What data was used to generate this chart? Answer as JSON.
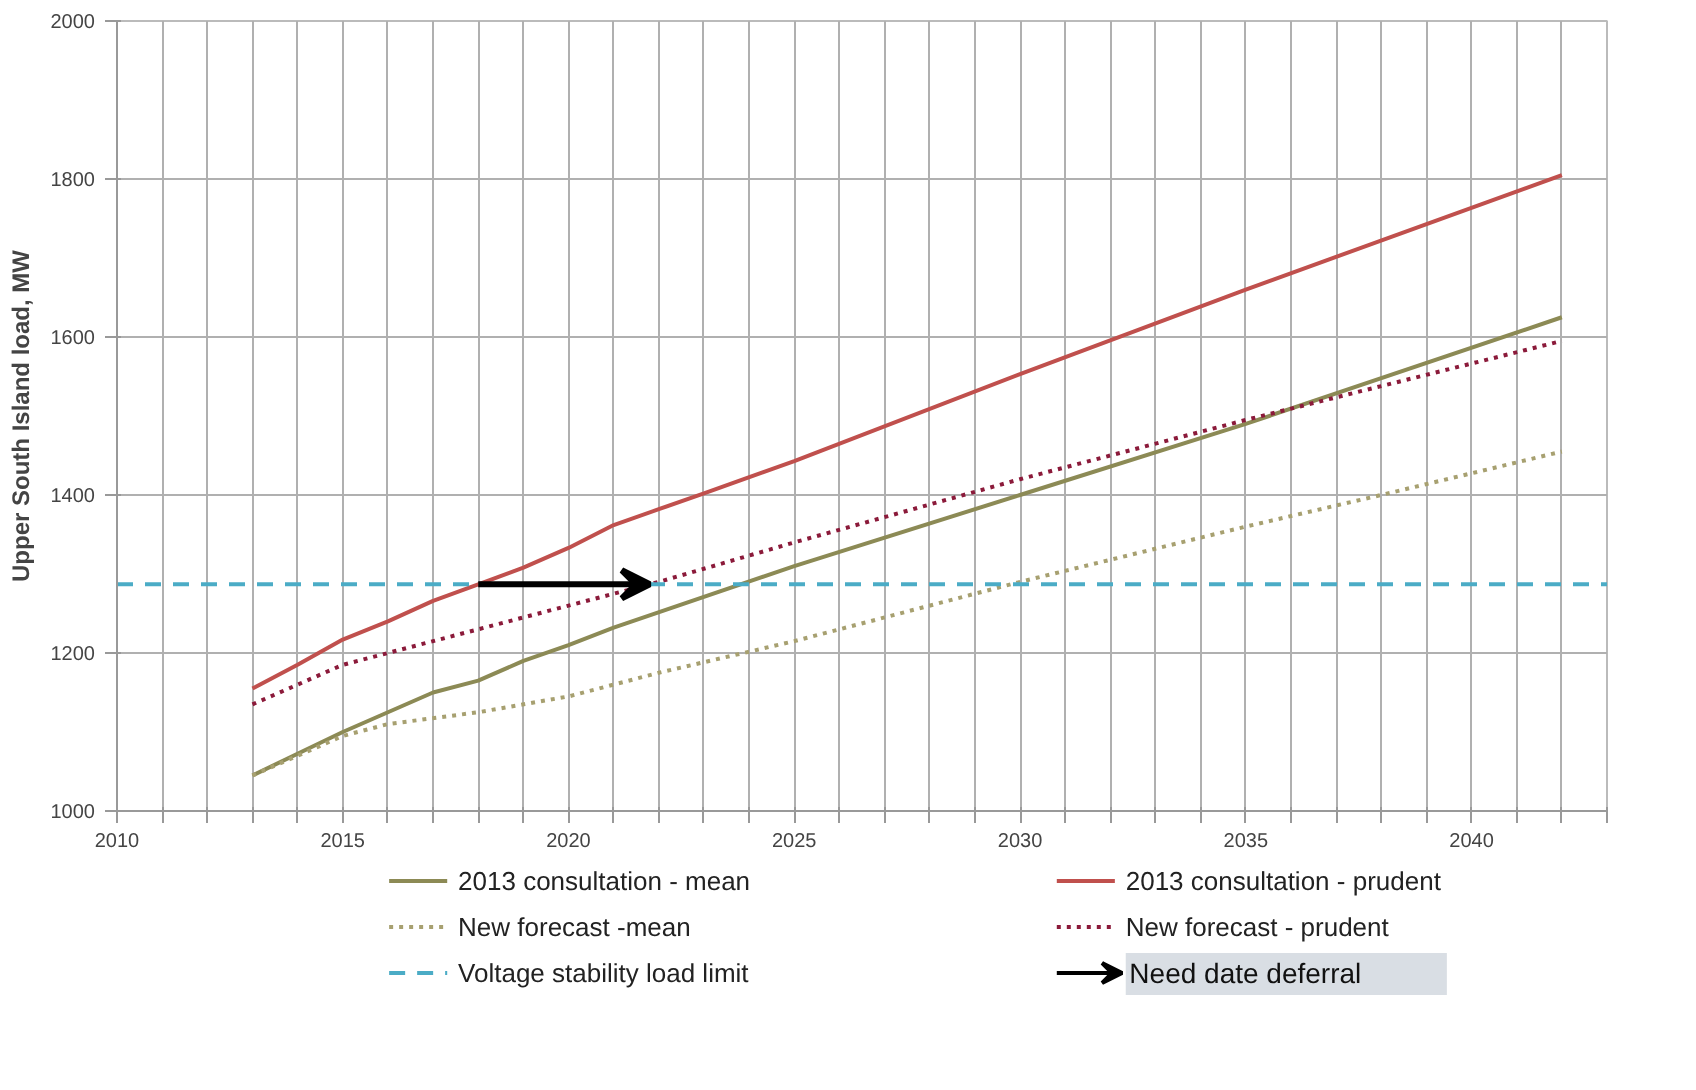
{
  "chart_data": {
    "type": "line",
    "ylabel": "Upper South Island load, MW",
    "xlim": [
      2010,
      2043
    ],
    "ylim": [
      1000,
      2000
    ],
    "xticks": [
      2010,
      {
        "value": 2011,
        "label": null
      },
      {
        "value": 2012,
        "label": null
      },
      {
        "value": 2013,
        "label": null
      },
      {
        "value": 2014,
        "label": null
      },
      2015,
      {
        "value": 2016,
        "label": null
      },
      {
        "value": 2017,
        "label": null
      },
      {
        "value": 2018,
        "label": null
      },
      {
        "value": 2019,
        "label": null
      },
      2020,
      {
        "value": 2021,
        "label": null
      },
      {
        "value": 2022,
        "label": null
      },
      {
        "value": 2023,
        "label": null
      },
      {
        "value": 2024,
        "label": null
      },
      2025,
      {
        "value": 2026,
        "label": null
      },
      {
        "value": 2027,
        "label": null
      },
      {
        "value": 2028,
        "label": null
      },
      {
        "value": 2029,
        "label": null
      },
      2030,
      {
        "value": 2031,
        "label": null
      },
      {
        "value": 2032,
        "label": null
      },
      {
        "value": 2033,
        "label": null
      },
      {
        "value": 2034,
        "label": null
      },
      2035,
      {
        "value": 2036,
        "label": null
      },
      {
        "value": 2037,
        "label": null
      },
      {
        "value": 2038,
        "label": null
      },
      {
        "value": 2039,
        "label": null
      },
      2040,
      {
        "value": 2041,
        "label": null
      },
      {
        "value": 2042,
        "label": null
      },
      {
        "value": 2043,
        "label": null
      }
    ],
    "yticks": [
      1000,
      1200,
      1400,
      1600,
      1800,
      2000
    ],
    "grid": true,
    "legend": "bottom",
    "series": [
      {
        "name": "2013 consultation - mean",
        "color": "#8c8a55",
        "line_style": "solid",
        "x": [
          2013,
          2015,
          2016,
          2017,
          2018,
          2019,
          2020,
          2021,
          2025,
          2030,
          2035,
          2042
        ],
        "values": [
          1045,
          1100,
          1125,
          1150,
          1165,
          1190,
          1210,
          1232,
          1310,
          1400,
          1490,
          1625
        ]
      },
      {
        "name": "2013 consultation - prudent",
        "color": "#c0504d",
        "line_style": "solid",
        "x": [
          2013,
          2014,
          2015,
          2016,
          2017,
          2018,
          2019,
          2020,
          2021,
          2022,
          2023,
          2025,
          2030,
          2035,
          2042
        ],
        "values": [
          1155,
          1185,
          1217,
          1240,
          1266,
          1287,
          1308,
          1333,
          1362,
          1382,
          1402,
          1443,
          1553,
          1660,
          1805
        ]
      },
      {
        "name": "New forecast -mean",
        "color": "#a7a070",
        "line_style": "dotted",
        "x": [
          2013,
          2015,
          2016,
          2018,
          2020,
          2022,
          2025,
          2030,
          2035,
          2038,
          2042
        ],
        "values": [
          1045,
          1095,
          1110,
          1125,
          1145,
          1175,
          1215,
          1290,
          1360,
          1400,
          1455
        ]
      },
      {
        "name": "New forecast - prudent",
        "color": "#8b1a3a",
        "line_style": "dotted",
        "x": [
          2013,
          2015,
          2016,
          2018,
          2020,
          2022,
          2025,
          2030,
          2035,
          2042
        ],
        "values": [
          1135,
          1185,
          1200,
          1230,
          1260,
          1290,
          1340,
          1420,
          1495,
          1595
        ]
      }
    ],
    "ref_lines": [
      {
        "axis": "y",
        "value": 1287,
        "label": "Voltage stability load limit",
        "color": "#4bacc6",
        "line_style": "dashed"
      }
    ],
    "annotations": [
      "Need date deferral"
    ]
  }
}
